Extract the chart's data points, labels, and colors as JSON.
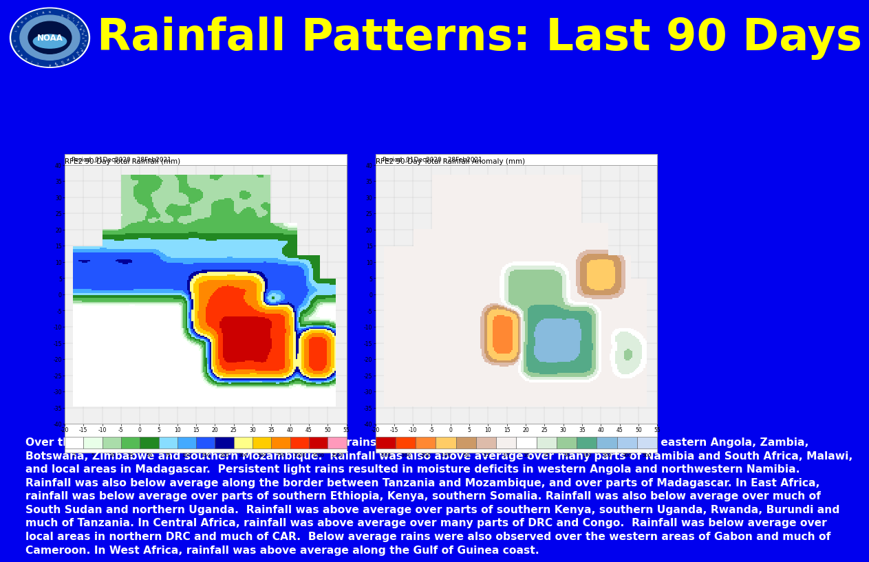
{
  "background_color": "#0000EE",
  "title": "Rainfall Patterns: Last 90 Days",
  "title_color": "#FFFF00",
  "title_fontsize": 46,
  "panel1_title": "RFE2 90-Day Total Rainfall (mm)",
  "panel1_subtitle": "Period: 01Dec2020 - 28Feb2021",
  "panel2_title": "RFE2 90-Day Total Rainfall Anomaly (mm)",
  "panel2_subtitle": "Period: 01Dec2020 - 28Feb2021",
  "body_text": "Over the past 90 days, in southern Africa, persistent rains resulted in sustained moisture surpluses over eastern Angola, Zambia, Botswana, Zimbabwe and southern Mozambique.  Rainfall was also above average over many parts of Namibia and South Africa, Malawi, and local areas in Madagascar.  Persistent light rains resulted in moisture deficits in western Angola and northwestern Namibia.  Rainfall was also below average along the border between Tanzania and Mozambique, and over parts of Madagascar. In East Africa, rainfall was below average over parts of southern Ethiopia, Kenya, southern Somalia. Rainfall was also below average over much of South Sudan and northern Uganda.  Rainfall was above average over parts of southern Kenya, southern Uganda, Rwanda, Burundi and much of Tanzania. In Central Africa, rainfall was above average over many parts of DRC and Congo.  Rainfall was below average over local areas in northern DRC and much of CAR.  Below average rains were also observed over the western areas of Gabon and much of Cameroon. In West Africa, rainfall was above average along the Gulf of Guinea coast.",
  "body_text_color": "#FFFFFF",
  "body_fontsize": 11.2,
  "colorbar1_colors": [
    "#FFFFFF",
    "#E8FFE8",
    "#AADDAA",
    "#55BB55",
    "#228822",
    "#88DDFF",
    "#44AAFF",
    "#2255FF",
    "#000099",
    "#FFFF88",
    "#FFCC00",
    "#FF8800",
    "#FF3300",
    "#CC0000",
    "#FF99BB"
  ],
  "colorbar1_labels": [
    "2",
    "5",
    "10",
    "25",
    "50",
    "75",
    "100",
    "150",
    "200",
    "300",
    "500",
    "750",
    "1000",
    "1500",
    "2500"
  ],
  "colorbar2_colors": [
    "#CC0000",
    "#FF4400",
    "#FF8833",
    "#FFCC66",
    "#CC9966",
    "#DDBBAA",
    "#F5F0EE",
    "#FFFFFF",
    "#DDEEDD",
    "#99CC99",
    "#55AA88",
    "#88BBDD",
    "#AACCEE",
    "#CCDDF5"
  ],
  "colorbar2_labels": [
    "-500",
    "-300",
    "-200",
    "-100",
    "-50",
    "-25",
    "-10",
    "10",
    "25",
    "50",
    "100",
    "200",
    "300",
    "500"
  ],
  "xtick_labels": [
    "-20",
    "-15",
    "-10",
    "-5",
    "0",
    "5",
    "10",
    "15",
    "20",
    "25",
    "30",
    "35",
    "40",
    "45",
    "50",
    "55"
  ],
  "ytick_labels": [
    "40",
    "35",
    "30",
    "25",
    "20",
    "15",
    "10",
    "5",
    "0",
    "-5",
    "-10",
    "-15",
    "-20",
    "-25",
    "-30",
    "-35",
    "-40"
  ]
}
